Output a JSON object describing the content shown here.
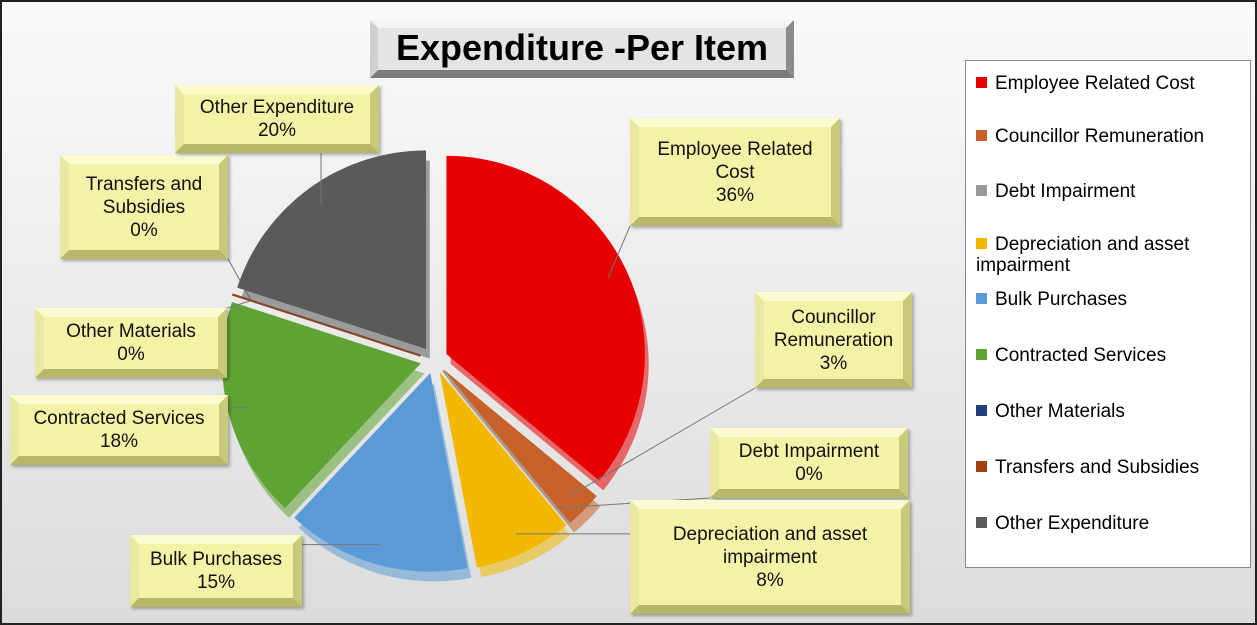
{
  "chart_data": {
    "type": "pie",
    "title": "Expenditure -Per Item",
    "categories": [
      "Employee Related Cost",
      "Councillor Remuneration",
      "Debt Impairment",
      "Depreciation and asset impairment",
      "Bulk Purchases",
      "Contracted Services",
      "Other Materials",
      "Transfers and Subsidies",
      "Other Expenditure"
    ],
    "values": [
      36,
      3,
      0,
      8,
      15,
      18,
      0,
      0,
      20
    ],
    "value_labels": [
      "36%",
      "3%",
      "0%",
      "8%",
      "15%",
      "18%",
      "0%",
      "0%",
      "20%"
    ],
    "colors": [
      "#e60000",
      "#c8602a",
      "#9a9a9a",
      "#f2b800",
      "#5b9bd5",
      "#5fa335",
      "#1f3f7f",
      "#a0400f",
      "#5a5a5a"
    ],
    "legend": "right"
  }
}
